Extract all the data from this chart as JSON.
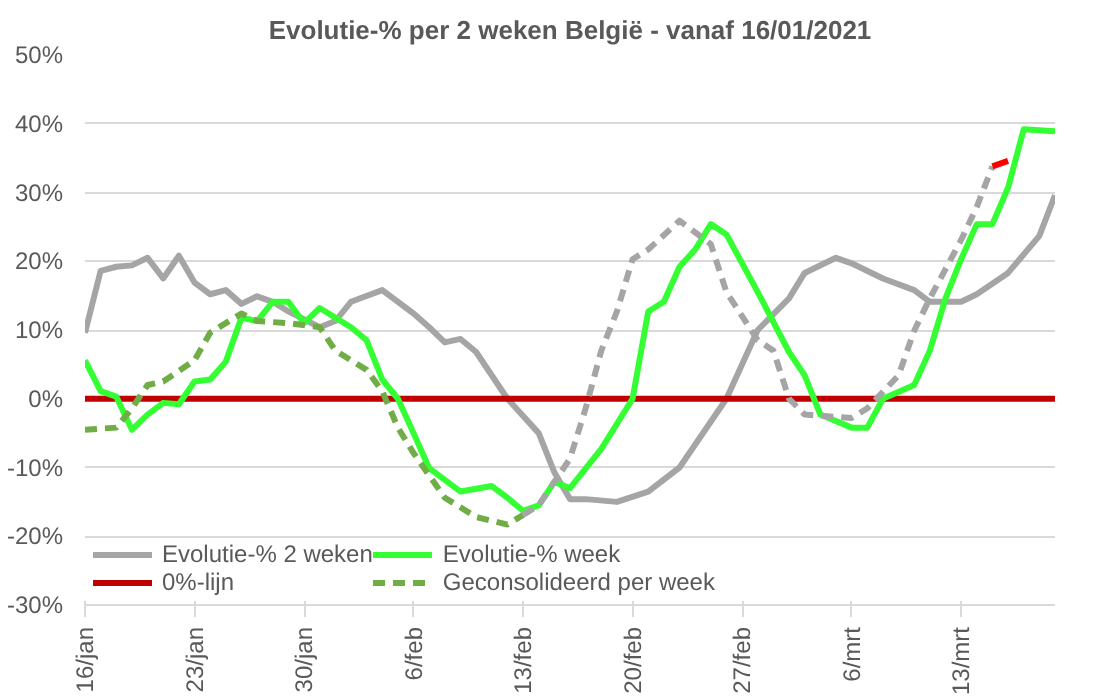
{
  "chart_data": {
    "type": "line",
    "title": "Evolutie-% per 2 weken België - vanaf 16/01/2021",
    "xlim": [
      "2021-01-16",
      "2021-03-19"
    ],
    "xticks": [
      {
        "value": "2021-01-16",
        "label": "16/jan"
      },
      {
        "value": "2021-01-23",
        "label": "23/jan"
      },
      {
        "value": "2021-01-30",
        "label": "30/jan"
      },
      {
        "value": "2021-02-06",
        "label": "6/feb"
      },
      {
        "value": "2021-02-13",
        "label": "13/feb"
      },
      {
        "value": "2021-02-20",
        "label": "20/feb"
      },
      {
        "value": "2021-02-27",
        "label": "27/feb"
      },
      {
        "value": "2021-03-06",
        "label": "6/mrt"
      },
      {
        "value": "2021-03-13",
        "label": "13/mrt"
      }
    ],
    "ylim": [
      -30,
      50
    ],
    "yticks": [
      {
        "value": -30,
        "label": "-30%"
      },
      {
        "value": -20,
        "label": "-20%"
      },
      {
        "value": -10,
        "label": "-10%"
      },
      {
        "value": 0,
        "label": "0%"
      },
      {
        "value": 10,
        "label": "10%"
      },
      {
        "value": 20,
        "label": "20%"
      },
      {
        "value": 30,
        "label": "30%"
      },
      {
        "value": 40,
        "label": "40%"
      },
      {
        "value": 50,
        "label": "50%"
      }
    ],
    "grid": "y",
    "legend": "bottom left",
    "marker": "none",
    "series": [
      {
        "name": "Evolutie-% 2 weken",
        "color": "#a5a5a5",
        "line_style": "solid",
        "x": [
          "2021-01-16",
          "2021-01-17",
          "2021-01-18",
          "2021-01-19",
          "2021-01-20",
          "2021-01-21",
          "2021-01-22",
          "2021-01-23",
          "2021-01-24",
          "2021-01-25",
          "2021-01-26",
          "2021-01-27",
          "2021-01-28",
          "2021-01-29",
          "2021-01-31",
          "2021-02-01",
          "2021-02-02",
          "2021-02-04",
          "2021-02-06",
          "2021-02-07",
          "2021-02-08",
          "2021-02-09",
          "2021-02-10",
          "2021-02-12",
          "2021-02-14",
          "2021-02-15",
          "2021-02-16",
          "2021-02-17",
          "2021-02-19",
          "2021-02-21",
          "2021-02-23",
          "2021-02-26",
          "2021-02-28",
          "2021-03-02",
          "2021-03-03",
          "2021-03-05",
          "2021-03-06",
          "2021-03-08",
          "2021-03-10",
          "2021-03-11",
          "2021-03-13",
          "2021-03-14",
          "2021-03-16",
          "2021-03-18",
          "2021-03-19"
        ],
        "values": [
          9.6,
          18.6,
          19.2,
          19.4,
          20.5,
          17.5,
          20.8,
          16.9,
          15.2,
          15.8,
          13.8,
          14.9,
          14.1,
          12.7,
          10.4,
          11.3,
          14.1,
          15.8,
          12.4,
          10.4,
          8.2,
          8.7,
          6.8,
          0,
          -5,
          -10.7,
          -14.6,
          -14.6,
          -15,
          -13.5,
          -10,
          0,
          10,
          14.6,
          18.3,
          20.5,
          19.7,
          17.5,
          15.8,
          14.1,
          14.1,
          15.2,
          18.3,
          23.7,
          29.6
        ]
      },
      {
        "name": "0%-lijn",
        "color": "#c00000",
        "line_style": "solid",
        "x": [
          "2021-01-16",
          "2021-03-19"
        ],
        "values": [
          0,
          0
        ]
      },
      {
        "name": "Evolutie-% week",
        "color": "#33ff33",
        "line_style": "solid",
        "x": [
          "2021-01-16",
          "2021-01-17",
          "2021-01-18",
          "2021-01-19",
          "2021-01-20",
          "2021-01-21",
          "2021-01-22",
          "2021-01-23",
          "2021-01-24",
          "2021-01-25",
          "2021-01-26",
          "2021-01-27",
          "2021-01-28",
          "2021-01-29",
          "2021-01-30",
          "2021-01-31",
          "2021-02-02",
          "2021-02-03",
          "2021-02-04",
          "2021-02-05",
          "2021-02-06",
          "2021-02-07",
          "2021-02-09",
          "2021-02-11",
          "2021-02-12",
          "2021-02-13",
          "2021-02-14",
          "2021-02-15",
          "2021-02-16",
          "2021-02-18",
          "2021-02-20",
          "2021-02-21",
          "2021-02-22",
          "2021-02-23",
          "2021-02-24",
          "2021-02-25",
          "2021-02-26",
          "2021-02-28",
          "2021-03-02",
          "2021-03-03",
          "2021-03-04",
          "2021-03-06",
          "2021-03-07",
          "2021-03-08",
          "2021-03-10",
          "2021-03-11",
          "2021-03-12",
          "2021-03-13",
          "2021-03-14",
          "2021-03-15",
          "2021-03-16",
          "2021-03-17",
          "2021-03-19"
        ],
        "values": [
          5.6,
          1.1,
          0.3,
          -4.5,
          -2.3,
          -0.6,
          -0.8,
          2.5,
          2.8,
          5.4,
          11.8,
          11.3,
          14.1,
          14.1,
          11,
          13.2,
          10.4,
          8.5,
          2.8,
          0,
          -5,
          -10.1,
          -13.5,
          -12.7,
          -14.4,
          -16.3,
          -15.5,
          -12.1,
          -13,
          -7.3,
          0,
          12.7,
          14.1,
          19.2,
          21.7,
          25.4,
          23.9,
          15.5,
          6.8,
          3.4,
          -2.3,
          -4.2,
          -4.2,
          0,
          2,
          7,
          14.6,
          20.3,
          25.4,
          25.4,
          30.7,
          39.2,
          38.9
        ]
      },
      {
        "name": "Geconsolideerd per week",
        "color": "#70ad47",
        "line_style": "dashed",
        "x": [
          "2021-01-16",
          "2021-01-18",
          "2021-01-19",
          "2021-01-20",
          "2021-01-21",
          "2021-01-23",
          "2021-01-24",
          "2021-01-26",
          "2021-01-27",
          "2021-01-29",
          "2021-01-31",
          "2021-02-01",
          "2021-02-03",
          "2021-02-04",
          "2021-02-05",
          "2021-02-06",
          "2021-02-08",
          "2021-02-10",
          "2021-02-12",
          "2021-02-13"
        ],
        "values": [
          -4.5,
          -4.2,
          -1.4,
          2,
          2.5,
          5.6,
          9.6,
          12.4,
          11.3,
          11,
          10.4,
          7,
          4.2,
          1.1,
          -4.2,
          -7.9,
          -14.4,
          -17.2,
          -18.3,
          -16.9
        ]
      },
      {
        "color": "#a5a5a5",
        "line_style": "dashed",
        "x": [
          "2021-02-13",
          "2021-02-14",
          "2021-02-16",
          "2021-02-17",
          "2021-02-18",
          "2021-02-19",
          "2021-02-20",
          "2021-02-21",
          "2021-02-23",
          "2021-02-25",
          "2021-02-26",
          "2021-02-28",
          "2021-03-01",
          "2021-03-02",
          "2021-03-03",
          "2021-03-06",
          "2021-03-07",
          "2021-03-09",
          "2021-03-10",
          "2021-03-11",
          "2021-03-13",
          "2021-03-14",
          "2021-03-15"
        ],
        "values": [
          -16.9,
          -15.5,
          -8.7,
          -1.4,
          7,
          12.7,
          20.3,
          21.7,
          25.9,
          22.5,
          15.5,
          8.5,
          7,
          0,
          -2.3,
          -2.8,
          -1.4,
          3.4,
          9.9,
          14.6,
          23.1,
          27.9,
          33.8
        ]
      },
      {
        "color": "#ff0000",
        "line_style": "solid",
        "x": [
          "2021-03-15",
          "2021-03-16"
        ],
        "values": [
          33.8,
          34.6
        ]
      }
    ]
  }
}
